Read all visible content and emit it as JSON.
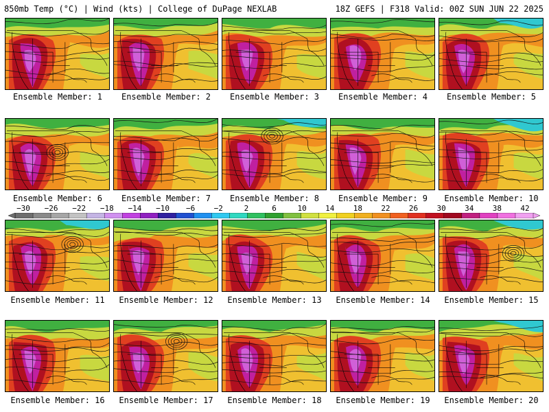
{
  "header": {
    "left_title": "850mb Temp (°C) | Wind (kts) | College of DuPage NEXLAB",
    "right_title": "18Z GEFS | F318 Valid: 00Z SUN JUN 22 2025"
  },
  "panels": [
    {
      "label": "Ensemble Member: 1"
    },
    {
      "label": "Ensemble Member: 2"
    },
    {
      "label": "Ensemble Member: 3"
    },
    {
      "label": "Ensemble Member: 4"
    },
    {
      "label": "Ensemble Member: 5"
    },
    {
      "label": "Ensemble Member: 6"
    },
    {
      "label": "Ensemble Member: 7"
    },
    {
      "label": "Ensemble Member: 8"
    },
    {
      "label": "Ensemble Member: 9"
    },
    {
      "label": "Ensemble Member: 10"
    },
    {
      "label": "Ensemble Member: 11"
    },
    {
      "label": "Ensemble Member: 12"
    },
    {
      "label": "Ensemble Member: 13"
    },
    {
      "label": "Ensemble Member: 14"
    },
    {
      "label": "Ensemble Member: 15"
    },
    {
      "label": "Ensemble Member: 16"
    },
    {
      "label": "Ensemble Member: 17"
    },
    {
      "label": "Ensemble Member: 18"
    },
    {
      "label": "Ensemble Member: 19"
    },
    {
      "label": "Ensemble Member: 20"
    }
  ],
  "color_scale": {
    "ticks": [
      "−30",
      "−26",
      "−22",
      "−18",
      "−14",
      "−10",
      "−6",
      "−2",
      "2",
      "6",
      "10",
      "14",
      "18",
      "22",
      "26",
      "30",
      "34",
      "38",
      "42"
    ],
    "colors": [
      "#6e6e6e",
      "#8a8a8a",
      "#a6a6a6",
      "#c2c2c2",
      "#c4b4e4",
      "#d090f0",
      "#c040e0",
      "#9020c0",
      "#3020a0",
      "#2050d0",
      "#2090f0",
      "#30c8f0",
      "#30d8c0",
      "#30c060",
      "#30a030",
      "#80c040",
      "#d0e040",
      "#f0f040",
      "#f0d020",
      "#f0b020",
      "#f09020",
      "#f06020",
      "#e03020",
      "#c01020",
      "#a00820",
      "#c02080",
      "#e040c0",
      "#f070e0",
      "#f0a0f0"
    ]
  },
  "field_colors": {
    "cold": "#30c8d0",
    "cool": "#40b040",
    "mild": "#c8d840",
    "warm": "#f0c030",
    "warmer": "#f09020",
    "hot": "#e04020",
    "hotter": "#b01020",
    "extreme": "#c020a0",
    "max": "#d060d8"
  }
}
